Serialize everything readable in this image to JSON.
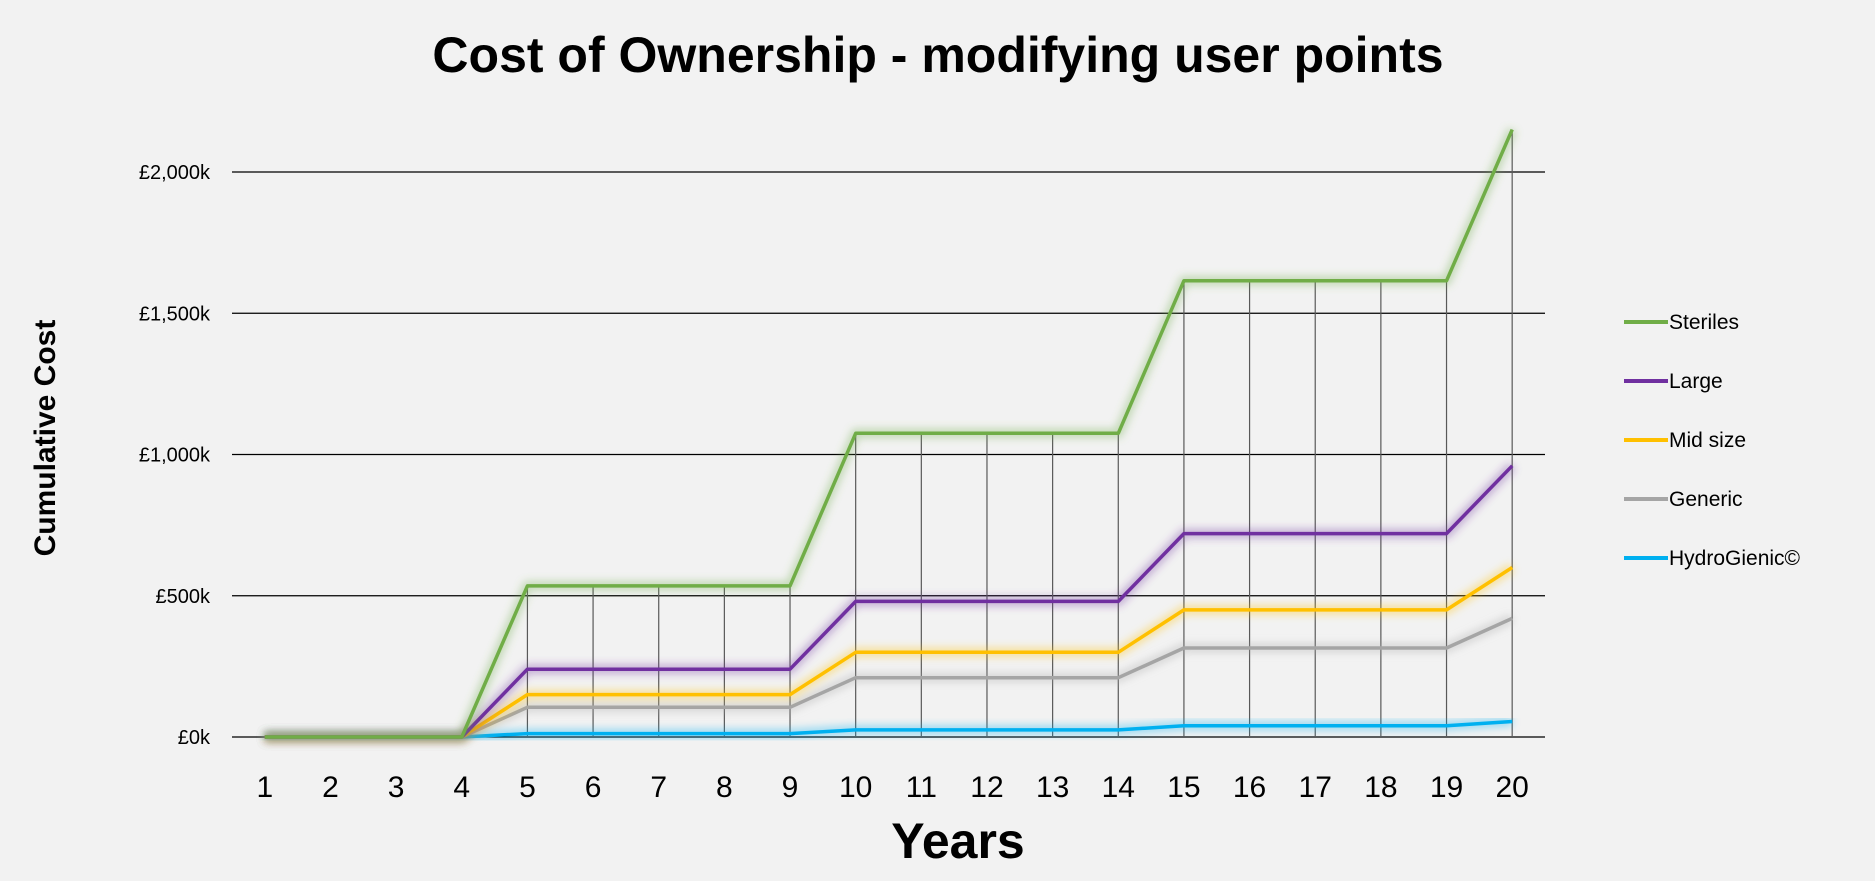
{
  "chart_data": {
    "type": "line",
    "title": "Cost of Ownership - modifying user points",
    "xlabel": "Years",
    "ylabel": "Cumulative Cost",
    "x": [
      1,
      2,
      3,
      4,
      5,
      6,
      7,
      8,
      9,
      10,
      11,
      12,
      13,
      14,
      15,
      16,
      17,
      18,
      19,
      20
    ],
    "x_tick_labels": [
      "1",
      "2",
      "3",
      "4",
      "5",
      "6",
      "7",
      "8",
      "9",
      "10",
      "11",
      "12",
      "13",
      "14",
      "15",
      "16",
      "17",
      "18",
      "19",
      "20"
    ],
    "ylim": [
      0,
      2000
    ],
    "y_ticks": [
      0,
      500,
      1000,
      1500,
      2000
    ],
    "y_tick_labels": [
      "£0k",
      "£500k",
      "£1,000k",
      "£1,500k",
      "£2,000k"
    ],
    "grid": "horizontal",
    "drop_lines": true,
    "legend_position": "right",
    "series": [
      {
        "name": "Steriles",
        "color": "#70ad47",
        "values": [
          0,
          0,
          0,
          0,
          535,
          535,
          535,
          535,
          535,
          1075,
          1075,
          1075,
          1075,
          1075,
          1615,
          1615,
          1615,
          1615,
          1615,
          2150
        ]
      },
      {
        "name": "Large",
        "color": "#7030a0",
        "values": [
          0,
          0,
          0,
          0,
          240,
          240,
          240,
          240,
          240,
          480,
          480,
          480,
          480,
          480,
          720,
          720,
          720,
          720,
          720,
          960
        ]
      },
      {
        "name": "Mid size",
        "color": "#ffc000",
        "values": [
          0,
          0,
          0,
          0,
          150,
          150,
          150,
          150,
          150,
          300,
          300,
          300,
          300,
          300,
          450,
          450,
          450,
          450,
          450,
          600
        ]
      },
      {
        "name": "Generic",
        "color": "#a5a5a5",
        "values": [
          0,
          0,
          0,
          0,
          105,
          105,
          105,
          105,
          105,
          210,
          210,
          210,
          210,
          210,
          315,
          315,
          315,
          315,
          315,
          420
        ]
      },
      {
        "name": "HydroGienic©",
        "color": "#00b0f0",
        "values": [
          0,
          0,
          0,
          0,
          12,
          12,
          12,
          12,
          12,
          25,
          25,
          25,
          25,
          25,
          40,
          40,
          40,
          40,
          40,
          55
        ]
      }
    ]
  }
}
